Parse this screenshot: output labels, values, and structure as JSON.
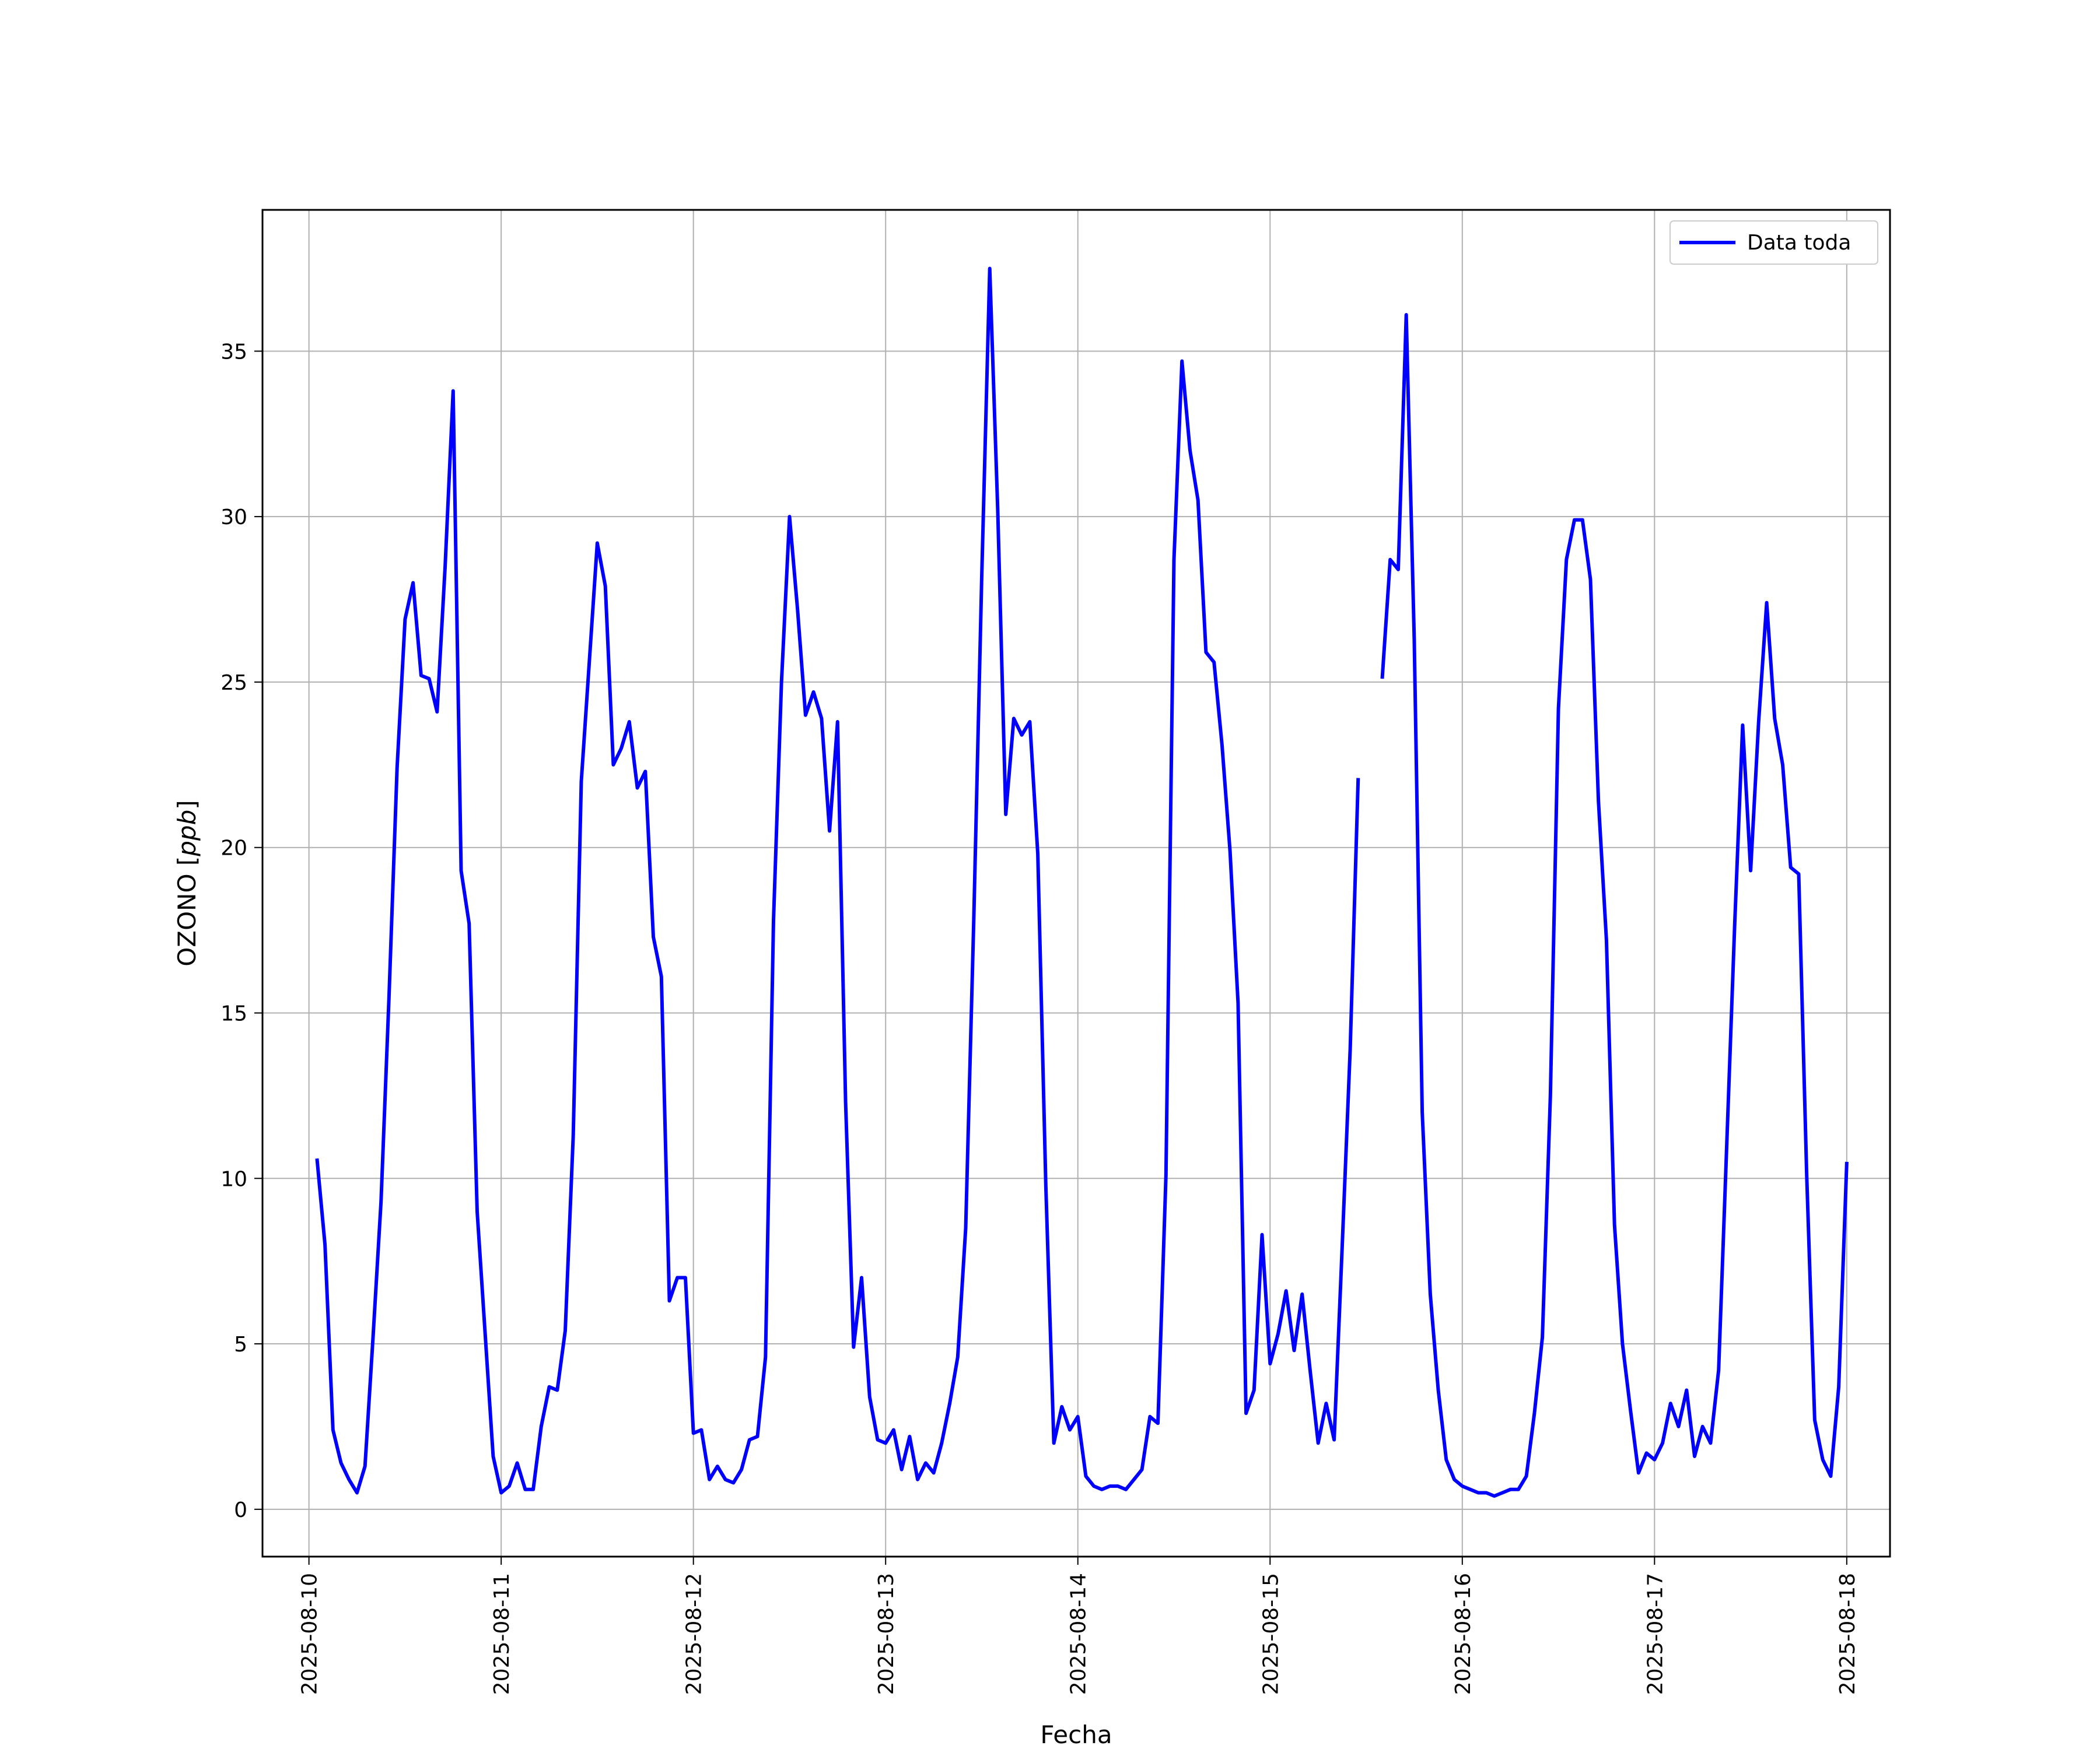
{
  "chart_data": {
    "type": "line",
    "title": "",
    "xlabel": "Fecha",
    "ylabel": "OZONO [ppb]",
    "ylabel_main": "OZONO",
    "ylabel_unit": "ppb",
    "xlim": [
      "2025-08-09T18:12:00",
      "2025-08-18T05:24:00"
    ],
    "ylim": [
      -1.43,
      39.27
    ],
    "x_ticks": [
      "2025-08-10",
      "2025-08-11",
      "2025-08-12",
      "2025-08-13",
      "2025-08-14",
      "2025-08-15",
      "2025-08-16",
      "2025-08-17",
      "2025-08-18"
    ],
    "y_ticks": [
      0,
      5,
      10,
      15,
      20,
      25,
      30,
      35
    ],
    "grid": true,
    "legend_position": "top-right",
    "series": [
      {
        "name": "Data toda",
        "color": "#0000ff",
        "x_start": "2025-08-10T01:00:00",
        "x_step_hours": 1,
        "values": [
          10.6,
          8.0,
          2.4,
          1.4,
          0.9,
          0.5,
          1.3,
          5.2,
          9.3,
          15.5,
          22.4,
          26.9,
          28.0,
          25.2,
          25.1,
          24.1,
          28.5,
          33.8,
          19.3,
          17.7,
          9.0,
          5.3,
          1.6,
          0.5,
          0.7,
          1.4,
          0.6,
          0.6,
          2.5,
          3.7,
          3.6,
          5.4,
          11.3,
          22.0,
          25.6,
          29.2,
          27.9,
          22.5,
          23.0,
          23.8,
          21.8,
          22.3,
          17.3,
          16.1,
          6.3,
          7.0,
          7.0,
          2.3,
          2.4,
          0.9,
          1.3,
          0.9,
          0.8,
          1.2,
          2.1,
          2.2,
          4.6,
          17.8,
          25.0,
          30.0,
          27.2,
          24.0,
          24.7,
          23.9,
          20.5,
          23.8,
          12.3,
          4.9,
          7.0,
          3.4,
          2.1,
          2.0,
          2.4,
          1.2,
          2.2,
          0.9,
          1.4,
          1.1,
          2.0,
          3.2,
          4.6,
          8.5,
          17.8,
          28.2,
          37.5,
          30.2,
          21.0,
          23.9,
          23.4,
          23.8,
          19.8,
          9.8,
          2.0,
          3.1,
          2.4,
          2.8,
          1.0,
          0.7,
          0.6,
          0.7,
          0.7,
          0.6,
          0.9,
          1.2,
          2.8,
          2.6,
          10.1,
          28.7,
          34.7,
          32.0,
          30.5,
          25.9,
          25.6,
          23.1,
          19.9,
          15.3,
          2.9,
          3.6,
          8.3,
          4.4,
          5.3,
          6.6,
          4.8,
          6.5,
          4.2,
          2.0,
          3.2,
          2.1,
          7.9,
          13.9,
          22.1,
          null,
          null,
          25.1,
          28.7,
          28.4,
          36.1,
          26.3,
          12.0,
          6.5,
          3.6,
          1.5,
          0.9,
          0.7,
          0.6,
          0.5,
          0.5,
          0.4,
          0.5,
          0.6,
          0.6,
          1.0,
          2.9,
          5.2,
          12.5,
          24.2,
          28.7,
          29.9,
          29.9,
          28.1,
          21.4,
          17.2,
          8.6,
          5.0,
          3.0,
          1.1,
          1.7,
          1.5,
          2.0,
          3.2,
          2.5,
          3.6,
          1.6,
          2.5,
          2.0,
          4.2,
          10.9,
          17.6,
          23.7,
          19.3,
          23.8,
          27.4,
          23.9,
          22.5,
          19.4,
          19.2,
          10.1,
          2.7,
          1.5,
          1.0,
          3.7,
          10.5
        ]
      }
    ]
  }
}
